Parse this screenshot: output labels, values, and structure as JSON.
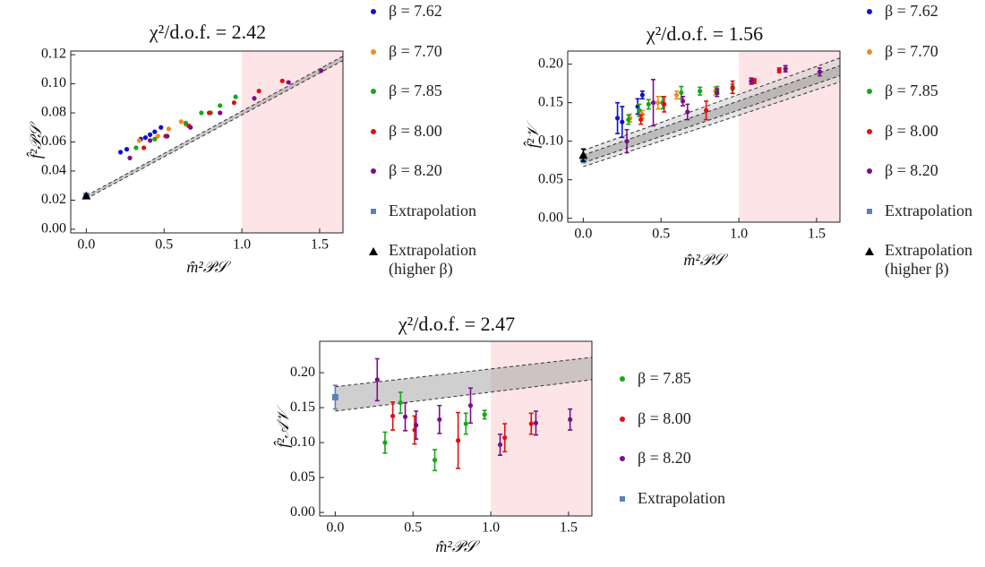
{
  "chart_data": [
    {
      "type": "scatter",
      "title": "χ²/d.o.f. = 2.42",
      "xlabel": "m̂²𝒫𝒮",
      "ylabel": "f̂²𝒫𝒮",
      "xlim": [
        -0.1,
        1.65
      ],
      "ylim": [
        -0.0025,
        0.1225
      ],
      "xticks": [
        {
          "value": 0,
          "label": "0.0"
        },
        {
          "value": 0.5,
          "label": "0.5"
        },
        {
          "value": 1,
          "label": "1.0"
        },
        {
          "value": 1.5,
          "label": "1.5"
        }
      ],
      "yticks": [
        {
          "value": 0,
          "label": "0.00"
        },
        {
          "value": 0.02,
          "label": "0.02"
        },
        {
          "value": 0.04,
          "label": "0.04"
        },
        {
          "value": 0.06,
          "label": "0.06"
        },
        {
          "value": 0.08,
          "label": "0.08"
        },
        {
          "value": 0.1,
          "label": "0.10"
        },
        {
          "value": 0.12,
          "label": "0.12"
        }
      ],
      "shaded_region": [
        1,
        1.65
      ],
      "shade_color": "#fde4e6",
      "bands": [
        {
          "x": [
            0,
            1.65
          ],
          "lower": [
            0.021,
            0.116
          ],
          "upper": [
            0.023,
            0.119
          ],
          "color": "#9a9a9a"
        }
      ],
      "series": [
        {
          "name": "β = 7.62",
          "color": "#1010d0",
          "marker": "circle",
          "x": [
            0.22,
            0.26,
            0.35,
            0.38,
            0.41,
            0.44,
            0.48
          ],
          "values": [
            0.053,
            0.055,
            0.062,
            0.063,
            0.065,
            0.067,
            0.07
          ]
        },
        {
          "name": "β = 7.70",
          "color": "#f08a1e",
          "marker": "circle",
          "x": [
            0.34,
            0.46,
            0.53,
            0.61,
            0.64
          ],
          "values": [
            0.061,
            0.064,
            0.069,
            0.074,
            0.072
          ]
        },
        {
          "name": "β = 7.85",
          "color": "#1aa61a",
          "marker": "circle",
          "x": [
            0.32,
            0.44,
            0.52,
            0.64,
            0.74,
            0.8,
            0.86,
            0.96
          ],
          "values": [
            0.056,
            0.062,
            0.064,
            0.073,
            0.08,
            0.08,
            0.085,
            0.091
          ]
        },
        {
          "name": "β = 8.00",
          "color": "#e01010",
          "marker": "circle",
          "x": [
            0.37,
            0.51,
            0.66,
            0.79,
            0.95,
            1.11,
            1.26
          ],
          "values": [
            0.056,
            0.064,
            0.071,
            0.08,
            0.087,
            0.095,
            0.102
          ]
        },
        {
          "name": "β = 8.20",
          "color": "#7a0f88",
          "marker": "circle",
          "x": [
            0.28,
            0.41,
            0.52,
            0.67,
            0.86,
            1.08,
            1.3,
            1.51
          ],
          "values": [
            0.049,
            0.061,
            0.064,
            0.07,
            0.08,
            0.09,
            0.101,
            0.109
          ]
        },
        {
          "name": "Extrapolation",
          "color": "#5b80b8",
          "marker": "square",
          "x": [
            0
          ],
          "values": [
            0.023
          ]
        },
        {
          "name": "Extrapolation (higher β)",
          "color": "#000000",
          "marker": "triangle",
          "x": [
            0
          ],
          "values": [
            0.023
          ]
        }
      ]
    },
    {
      "type": "scatter",
      "title": "χ²/d.o.f. = 1.56",
      "xlabel": "m̂²𝒫𝒮",
      "ylabel": "f̂²𝒱",
      "xlim": [
        -0.1,
        1.65
      ],
      "ylim": [
        -0.005,
        0.217
      ],
      "xticks": [
        {
          "value": 0,
          "label": "0.0"
        },
        {
          "value": 0.5,
          "label": "0.5"
        },
        {
          "value": 1,
          "label": "1.0"
        },
        {
          "value": 1.5,
          "label": "1.5"
        }
      ],
      "yticks": [
        {
          "value": 0,
          "label": "0.00"
        },
        {
          "value": 0.05,
          "label": "0.05"
        },
        {
          "value": 0.1,
          "label": "0.10"
        },
        {
          "value": 0.15,
          "label": "0.15"
        },
        {
          "value": 0.2,
          "label": "0.20"
        }
      ],
      "shaded_region": [
        1,
        1.65
      ],
      "shade_color": "#fde4e6",
      "bands": [
        {
          "x": [
            0,
            1.65
          ],
          "lower": [
            0.067,
            0.177
          ],
          "upper": [
            0.088,
            0.208
          ],
          "color": "#cfcfcf"
        },
        {
          "x": [
            0,
            1.65
          ],
          "lower": [
            0.072,
            0.185
          ],
          "upper": [
            0.082,
            0.198
          ],
          "color": "#9a9a9a"
        }
      ],
      "series": [
        {
          "name": "β = 7.62",
          "color": "#1010d0",
          "marker": "circle",
          "x": [
            0.22,
            0.25,
            0.35,
            0.38
          ],
          "values": [
            0.13,
            0.125,
            0.145,
            0.16
          ],
          "errors": [
            0.02,
            0.02,
            0.01,
            0.005
          ]
        },
        {
          "name": "β = 7.70",
          "color": "#f08a1e",
          "marker": "circle",
          "x": [
            0.3,
            0.38,
            0.48,
            0.6,
            0.85,
            1.08
          ],
          "values": [
            0.13,
            0.135,
            0.15,
            0.16,
            0.165,
            0.178
          ],
          "errors": [
            0.005,
            0.005,
            0.008,
            0.005,
            0.005,
            0.003
          ]
        },
        {
          "name": "β = 7.85",
          "color": "#1aa61a",
          "marker": "circle",
          "x": [
            0.29,
            0.36,
            0.42,
            0.51,
            0.63,
            0.75,
            0.86,
            0.96
          ],
          "values": [
            0.128,
            0.14,
            0.148,
            0.15,
            0.163,
            0.165,
            0.166,
            0.168
          ],
          "errors": [
            0.006,
            0.008,
            0.006,
            0.008,
            0.008,
            0.005,
            0.005,
            0.006
          ]
        },
        {
          "name": "β = 8.00",
          "color": "#e01010",
          "marker": "circle",
          "x": [
            0.37,
            0.52,
            0.79,
            0.96,
            1.1,
            1.26
          ],
          "values": [
            0.128,
            0.148,
            0.14,
            0.17,
            0.178,
            0.192
          ],
          "errors": [
            0.006,
            0.01,
            0.012,
            0.008,
            0.003,
            0.003
          ]
        },
        {
          "name": "β = 8.20",
          "color": "#7a0f88",
          "marker": "circle",
          "x": [
            0.28,
            0.45,
            0.64,
            0.67,
            0.86,
            1.08,
            1.3,
            1.52
          ],
          "values": [
            0.1,
            0.15,
            0.152,
            0.138,
            0.163,
            0.178,
            0.194,
            0.19
          ],
          "errors": [
            0.015,
            0.03,
            0.006,
            0.01,
            0.005,
            0.004,
            0.004,
            0.005
          ]
        },
        {
          "name": "Extrapolation",
          "color": "#5b80b8",
          "marker": "square",
          "x": [
            0
          ],
          "values": [
            0.077
          ],
          "errors": [
            0.005
          ]
        },
        {
          "name": "Extrapolation (higher β)",
          "color": "#000000",
          "marker": "triangle",
          "x": [
            0
          ],
          "values": [
            0.082
          ],
          "errors": [
            0.008
          ]
        }
      ]
    },
    {
      "type": "scatter",
      "title": "χ²/d.o.f. = 2.47",
      "xlabel": "m̂²𝒫𝒮",
      "ylabel": "f̂²𝒜𝒱",
      "xlim": [
        -0.1,
        1.65
      ],
      "ylim": [
        -0.005,
        0.245
      ],
      "xticks": [
        {
          "value": 0,
          "label": "0.0"
        },
        {
          "value": 0.5,
          "label": "0.5"
        },
        {
          "value": 1,
          "label": "1.0"
        },
        {
          "value": 1.5,
          "label": "1.5"
        }
      ],
      "yticks": [
        {
          "value": 0,
          "label": "0.00"
        },
        {
          "value": 0.05,
          "label": "0.05"
        },
        {
          "value": 0.1,
          "label": "0.10"
        },
        {
          "value": 0.15,
          "label": "0.15"
        },
        {
          "value": 0.2,
          "label": "0.20"
        }
      ],
      "shaded_region": [
        1,
        1.65
      ],
      "shade_color": "#fde4e6",
      "bands": [
        {
          "x": [
            0,
            1.65
          ],
          "lower": [
            0.145,
            0.19
          ],
          "upper": [
            0.18,
            0.222
          ],
          "color": "#a8a8a8"
        }
      ],
      "series": [
        {
          "name": "β = 7.85",
          "color": "#1aa61a",
          "marker": "circle",
          "x": [
            0.32,
            0.42,
            0.64,
            0.84,
            0.96
          ],
          "values": [
            0.1,
            0.157,
            0.075,
            0.127,
            0.14
          ],
          "errors": [
            0.015,
            0.015,
            0.015,
            0.015,
            0.006
          ]
        },
        {
          "name": "β = 8.00",
          "color": "#e01010",
          "marker": "circle",
          "x": [
            0.37,
            0.51,
            0.79,
            1.09,
            1.26
          ],
          "values": [
            0.138,
            0.118,
            0.103,
            0.107,
            0.127
          ],
          "errors": [
            0.02,
            0.02,
            0.04,
            0.02,
            0.015
          ]
        },
        {
          "name": "β = 8.20",
          "color": "#7a0f88",
          "marker": "circle",
          "x": [
            0.27,
            0.45,
            0.52,
            0.67,
            0.87,
            1.06,
            1.29,
            1.51
          ],
          "values": [
            0.19,
            0.137,
            0.125,
            0.133,
            0.153,
            0.097,
            0.128,
            0.133
          ],
          "errors": [
            0.03,
            0.02,
            0.02,
            0.02,
            0.025,
            0.015,
            0.017,
            0.015
          ]
        },
        {
          "name": "Extrapolation",
          "color": "#5b80b8",
          "marker": "square",
          "x": [
            0
          ],
          "values": [
            0.165
          ],
          "errors": [
            0.017
          ]
        }
      ]
    }
  ]
}
